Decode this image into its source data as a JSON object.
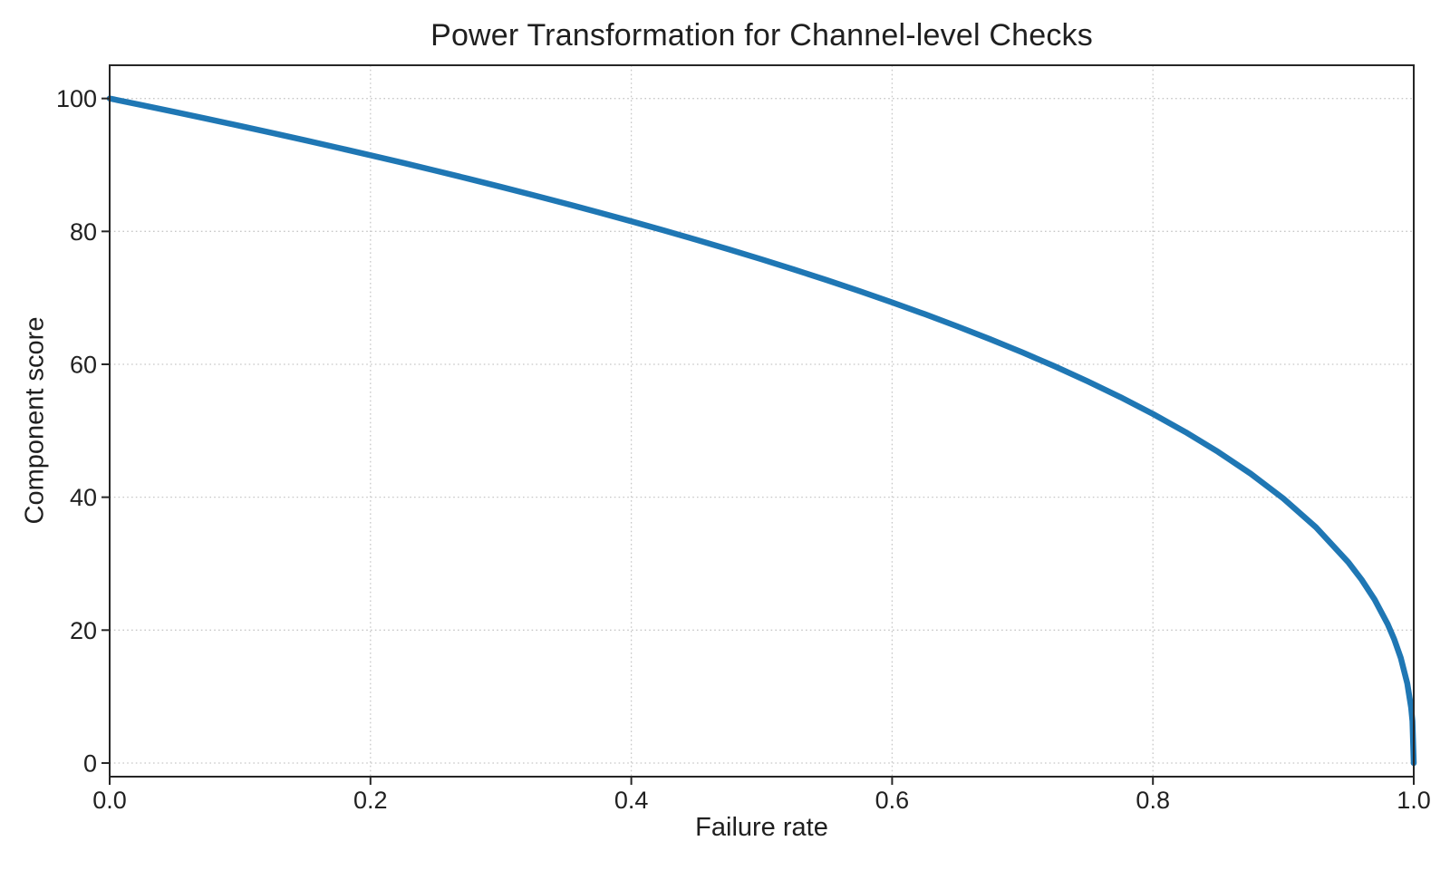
{
  "chart_data": {
    "type": "line",
    "title": "Power Transformation for Channel-level Checks",
    "xlabel": "Failure rate",
    "ylabel": "Component score",
    "xlim": [
      0.0,
      1.0
    ],
    "ylim": [
      -2.05,
      105.0
    ],
    "x_ticks": {
      "values": [
        0.0,
        0.2,
        0.4,
        0.6,
        0.8,
        1.0
      ],
      "labels": [
        "0.0",
        "0.2",
        "0.4",
        "0.6",
        "0.8",
        "1.0"
      ]
    },
    "y_ticks": {
      "values": [
        0,
        20,
        40,
        60,
        80,
        100
      ],
      "labels": [
        "0",
        "20",
        "40",
        "60",
        "80",
        "100"
      ]
    },
    "grid": {
      "visible": true,
      "style": "dotted",
      "color": "#c7c7c7"
    },
    "axis_color": "#262626",
    "text_color": "#212121",
    "background_color": "#ffffff",
    "legend": "none",
    "series": [
      {
        "name": "component-score-curve",
        "color": "#1f77b4",
        "line_width": 6.5,
        "x": [
          0,
          0.025,
          0.05,
          0.075,
          0.1,
          0.125,
          0.15,
          0.175,
          0.2,
          0.225,
          0.25,
          0.275,
          0.3,
          0.325,
          0.35,
          0.375,
          0.4,
          0.425,
          0.45,
          0.475,
          0.5,
          0.525,
          0.55,
          0.575,
          0.6,
          0.625,
          0.65,
          0.675,
          0.7,
          0.725,
          0.75,
          0.775,
          0.8,
          0.825,
          0.85,
          0.875,
          0.9,
          0.925,
          0.95,
          0.96,
          0.97,
          0.98,
          0.985,
          0.99,
          0.995,
          0.998,
          0.999,
          1.0
        ],
        "y": [
          100,
          98.99,
          97.97,
          96.93,
          95.87,
          94.8,
          93.71,
          92.59,
          91.46,
          90.31,
          89.13,
          87.93,
          86.7,
          85.45,
          84.17,
          82.86,
          81.52,
          80.14,
          78.73,
          77.28,
          75.79,
          74.25,
          72.66,
          71.02,
          69.31,
          67.55,
          65.71,
          63.79,
          61.78,
          59.67,
          57.43,
          55.07,
          52.53,
          49.8,
          46.82,
          43.53,
          39.81,
          35.48,
          30.17,
          27.6,
          24.6,
          20.91,
          18.64,
          15.85,
          12.01,
          8.33,
          6.31,
          0
        ]
      }
    ]
  }
}
